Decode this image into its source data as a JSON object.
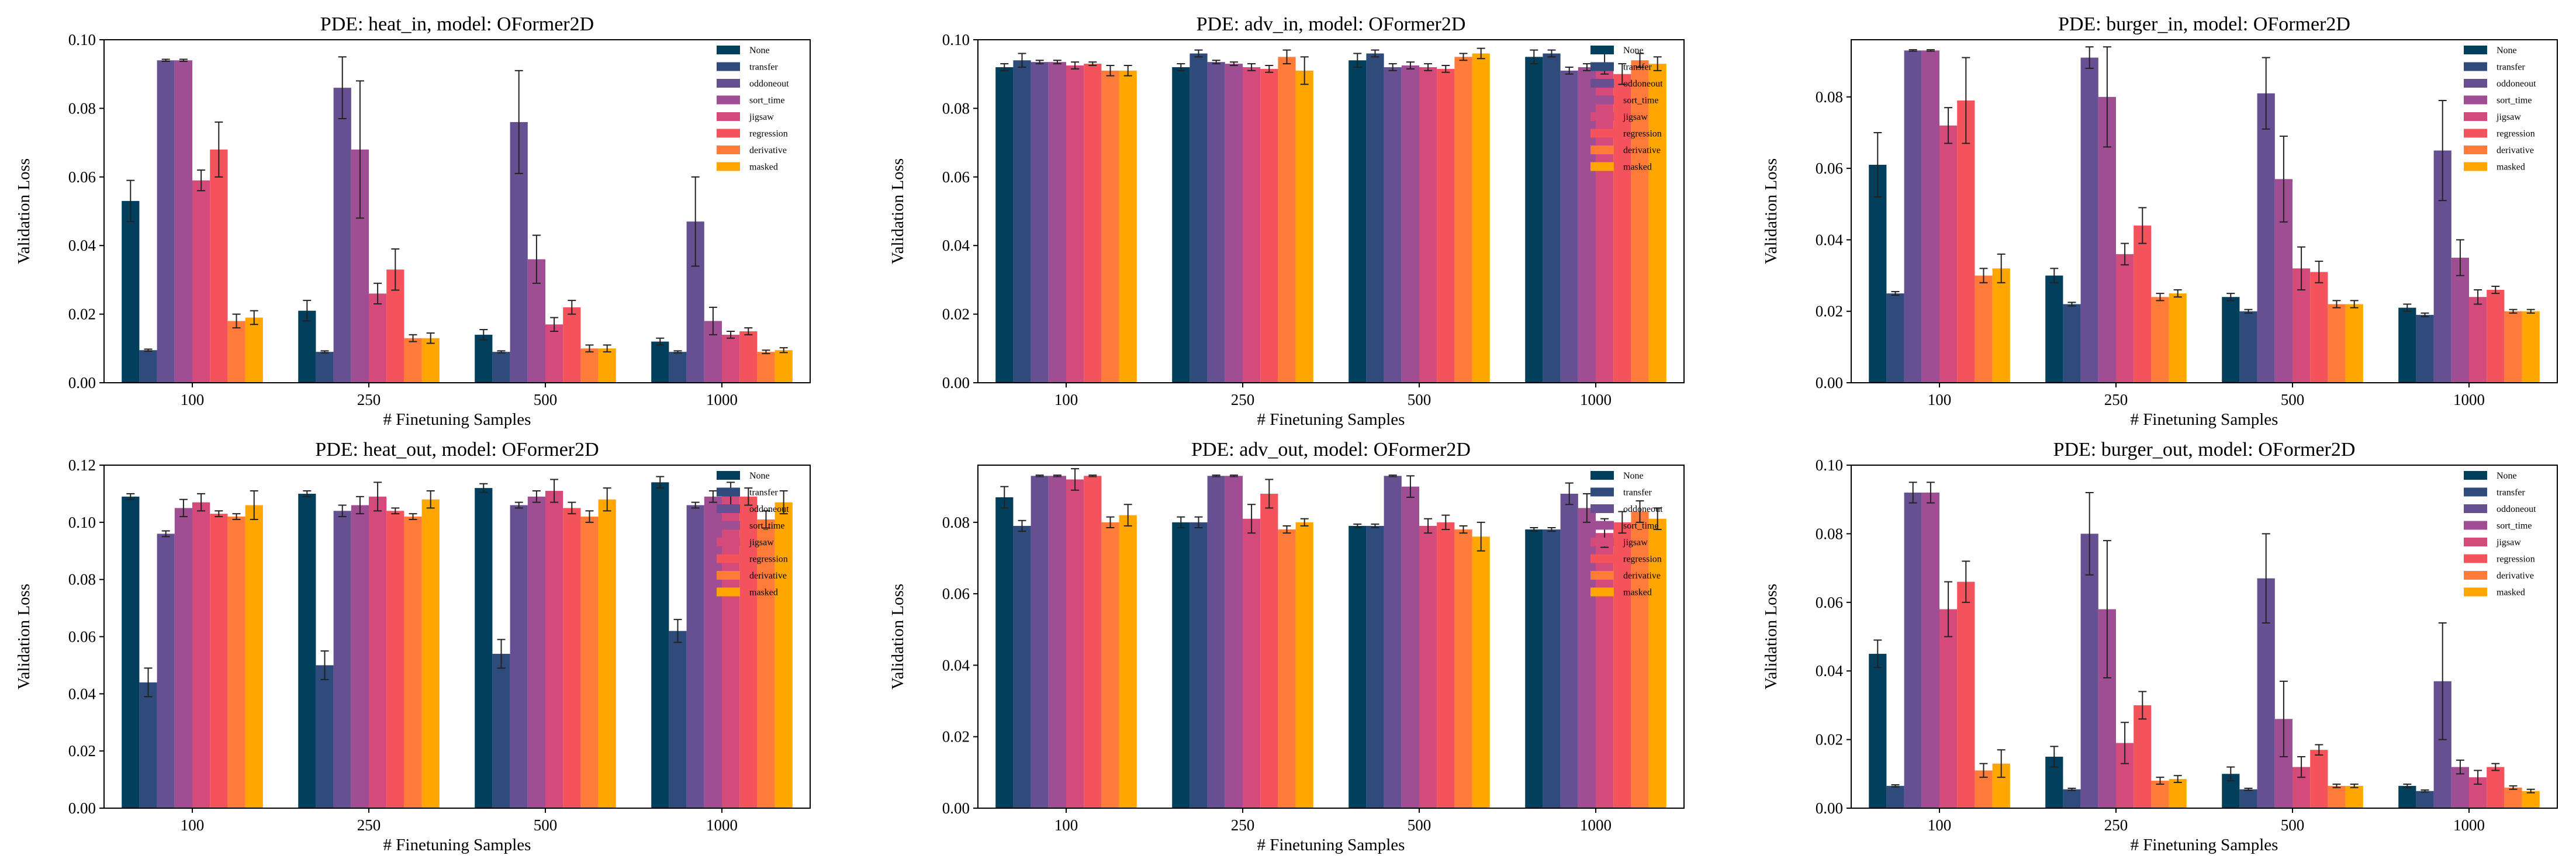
{
  "figure": {
    "colors": {
      "None": "#023f5c",
      "transfer": "#2e4b7b",
      "oddoneout": "#665091",
      "sort_time": "#a04e93",
      "jigsaw": "#d44a7a",
      "regression": "#f4535c",
      "derivative": "#ff7b39",
      "masked": "#ffa600",
      "errorbar": "#222222",
      "axis": "#000000"
    }
  },
  "chart_data": [
    {
      "type": "bar",
      "title": "PDE: heat_in, model: OFormer2D",
      "xlabel": "# Finetuning Samples",
      "ylabel": "Validation Loss",
      "categories": [
        "100",
        "250",
        "500",
        "1000"
      ],
      "ylim": [
        0,
        0.1
      ],
      "yticks": [
        "0.00",
        "0.02",
        "0.04",
        "0.06",
        "0.08",
        "0.10"
      ],
      "legend_position": "top-right",
      "series": [
        {
          "name": "None",
          "values": [
            0.053,
            0.021,
            0.014,
            0.012
          ],
          "errors": [
            0.006,
            0.003,
            0.0015,
            0.001
          ]
        },
        {
          "name": "transfer",
          "values": [
            0.0095,
            0.009,
            0.009,
            0.009
          ],
          "errors": [
            0.0003,
            0.0003,
            0.0003,
            0.0003
          ]
        },
        {
          "name": "oddoneout",
          "values": [
            0.094,
            0.086,
            0.076,
            0.047
          ],
          "errors": [
            0.0003,
            0.009,
            0.015,
            0.013
          ]
        },
        {
          "name": "sort_time",
          "values": [
            0.094,
            0.068,
            0.036,
            0.018
          ],
          "errors": [
            0.0003,
            0.02,
            0.007,
            0.004
          ]
        },
        {
          "name": "jigsaw",
          "values": [
            0.059,
            0.026,
            0.017,
            0.014
          ],
          "errors": [
            0.003,
            0.003,
            0.002,
            0.001
          ]
        },
        {
          "name": "regression",
          "values": [
            0.068,
            0.033,
            0.022,
            0.015
          ],
          "errors": [
            0.008,
            0.006,
            0.002,
            0.001
          ]
        },
        {
          "name": "derivative",
          "values": [
            0.018,
            0.013,
            0.01,
            0.009
          ],
          "errors": [
            0.002,
            0.001,
            0.001,
            0.0005
          ]
        },
        {
          "name": "masked",
          "values": [
            0.019,
            0.013,
            0.01,
            0.0095
          ],
          "errors": [
            0.002,
            0.0015,
            0.001,
            0.0007
          ]
        }
      ]
    },
    {
      "type": "bar",
      "title": "PDE: adv_in, model: OFormer2D",
      "xlabel": "# Finetuning Samples",
      "ylabel": "Validation Loss",
      "categories": [
        "100",
        "250",
        "500",
        "1000"
      ],
      "ylim": [
        0,
        0.1
      ],
      "yticks": [
        "0.00",
        "0.02",
        "0.04",
        "0.06",
        "0.08",
        "0.10"
      ],
      "legend_position": "top-right",
      "series": [
        {
          "name": "None",
          "values": [
            0.092,
            0.092,
            0.094,
            0.095
          ],
          "errors": [
            0.001,
            0.001,
            0.002,
            0.002
          ]
        },
        {
          "name": "transfer",
          "values": [
            0.094,
            0.096,
            0.096,
            0.096
          ],
          "errors": [
            0.002,
            0.001,
            0.001,
            0.001
          ]
        },
        {
          "name": "oddoneout",
          "values": [
            0.0935,
            0.0935,
            0.092,
            0.091
          ],
          "errors": [
            0.0005,
            0.0005,
            0.001,
            0.001
          ]
        },
        {
          "name": "sort_time",
          "values": [
            0.0935,
            0.093,
            0.0925,
            0.092
          ],
          "errors": [
            0.0005,
            0.0005,
            0.001,
            0.001
          ]
        },
        {
          "name": "jigsaw",
          "values": [
            0.0925,
            0.092,
            0.092,
            0.093
          ],
          "errors": [
            0.001,
            0.001,
            0.001,
            0.003
          ]
        },
        {
          "name": "regression",
          "values": [
            0.093,
            0.0915,
            0.0915,
            0.09
          ],
          "errors": [
            0.0005,
            0.001,
            0.001,
            0.003
          ]
        },
        {
          "name": "derivative",
          "values": [
            0.091,
            0.095,
            0.095,
            0.094
          ],
          "errors": [
            0.0015,
            0.002,
            0.001,
            0.002
          ]
        },
        {
          "name": "masked",
          "values": [
            0.091,
            0.091,
            0.096,
            0.093
          ],
          "errors": [
            0.0015,
            0.004,
            0.0015,
            0.002
          ]
        }
      ]
    },
    {
      "type": "bar",
      "title": "PDE: burger_in, model: OFormer2D",
      "xlabel": "# Finetuning Samples",
      "ylabel": "Validation Loss",
      "categories": [
        "100",
        "250",
        "500",
        "1000"
      ],
      "ylim": [
        0,
        0.096
      ],
      "yticks": [
        "0.00",
        "0.02",
        "0.04",
        "0.06",
        "0.08"
      ],
      "legend_position": "top-right",
      "series": [
        {
          "name": "None",
          "values": [
            0.061,
            0.03,
            0.024,
            0.021
          ],
          "errors": [
            0.009,
            0.002,
            0.001,
            0.001
          ]
        },
        {
          "name": "transfer",
          "values": [
            0.025,
            0.022,
            0.02,
            0.019
          ],
          "errors": [
            0.0005,
            0.0005,
            0.0005,
            0.0005
          ]
        },
        {
          "name": "oddoneout",
          "values": [
            0.093,
            0.091,
            0.081,
            0.065
          ],
          "errors": [
            0.0002,
            0.003,
            0.01,
            0.014
          ]
        },
        {
          "name": "sort_time",
          "values": [
            0.093,
            0.08,
            0.057,
            0.035
          ],
          "errors": [
            0.0002,
            0.014,
            0.012,
            0.005
          ]
        },
        {
          "name": "jigsaw",
          "values": [
            0.072,
            0.036,
            0.032,
            0.024
          ],
          "errors": [
            0.005,
            0.003,
            0.006,
            0.002
          ]
        },
        {
          "name": "regression",
          "values": [
            0.079,
            0.044,
            0.031,
            0.026
          ],
          "errors": [
            0.012,
            0.005,
            0.003,
            0.001
          ]
        },
        {
          "name": "derivative",
          "values": [
            0.03,
            0.024,
            0.022,
            0.02
          ],
          "errors": [
            0.002,
            0.001,
            0.001,
            0.0005
          ]
        },
        {
          "name": "masked",
          "values": [
            0.032,
            0.025,
            0.022,
            0.02
          ],
          "errors": [
            0.004,
            0.001,
            0.001,
            0.0005
          ]
        }
      ]
    },
    {
      "type": "bar",
      "title": "PDE: heat_out, model: OFormer2D",
      "xlabel": "# Finetuning Samples",
      "ylabel": "Validation Loss",
      "categories": [
        "100",
        "250",
        "500",
        "1000"
      ],
      "ylim": [
        0,
        0.12
      ],
      "yticks": [
        "0.00",
        "0.02",
        "0.04",
        "0.06",
        "0.08",
        "0.10",
        "0.12"
      ],
      "legend_position": "top-right",
      "series": [
        {
          "name": "None",
          "values": [
            0.109,
            0.11,
            0.112,
            0.114
          ],
          "errors": [
            0.001,
            0.001,
            0.0015,
            0.002
          ]
        },
        {
          "name": "transfer",
          "values": [
            0.044,
            0.05,
            0.054,
            0.062
          ],
          "errors": [
            0.005,
            0.005,
            0.005,
            0.004
          ]
        },
        {
          "name": "oddoneout",
          "values": [
            0.096,
            0.104,
            0.106,
            0.106
          ],
          "errors": [
            0.001,
            0.002,
            0.001,
            0.001
          ]
        },
        {
          "name": "sort_time",
          "values": [
            0.105,
            0.106,
            0.109,
            0.109
          ],
          "errors": [
            0.003,
            0.003,
            0.002,
            0.002
          ]
        },
        {
          "name": "jigsaw",
          "values": [
            0.107,
            0.109,
            0.111,
            0.11
          ],
          "errors": [
            0.003,
            0.005,
            0.004,
            0.004
          ]
        },
        {
          "name": "regression",
          "values": [
            0.103,
            0.104,
            0.105,
            0.109
          ],
          "errors": [
            0.001,
            0.001,
            0.002,
            0.003
          ]
        },
        {
          "name": "derivative",
          "values": [
            0.102,
            0.102,
            0.102,
            0.101
          ],
          "errors": [
            0.001,
            0.001,
            0.002,
            0.003
          ]
        },
        {
          "name": "masked",
          "values": [
            0.106,
            0.108,
            0.108,
            0.107
          ],
          "errors": [
            0.005,
            0.003,
            0.004,
            0.004
          ]
        }
      ]
    },
    {
      "type": "bar",
      "title": "PDE: adv_out, model: OFormer2D",
      "xlabel": "# Finetuning Samples",
      "ylabel": "Validation Loss",
      "categories": [
        "100",
        "250",
        "500",
        "1000"
      ],
      "ylim": [
        0,
        0.096
      ],
      "yticks": [
        "0.00",
        "0.02",
        "0.04",
        "0.06",
        "0.08"
      ],
      "legend_position": "top-right",
      "series": [
        {
          "name": "None",
          "values": [
            0.087,
            0.08,
            0.079,
            0.078
          ],
          "errors": [
            0.003,
            0.0015,
            0.0005,
            0.0005
          ]
        },
        {
          "name": "transfer",
          "values": [
            0.079,
            0.08,
            0.079,
            0.078
          ],
          "errors": [
            0.0015,
            0.0015,
            0.0005,
            0.0005
          ]
        },
        {
          "name": "oddoneout",
          "values": [
            0.093,
            0.093,
            0.093,
            0.088
          ],
          "errors": [
            0.0002,
            0.0002,
            0.0002,
            0.003
          ]
        },
        {
          "name": "sort_time",
          "values": [
            0.093,
            0.093,
            0.09,
            0.084
          ],
          "errors": [
            0.0002,
            0.0002,
            0.003,
            0.004
          ]
        },
        {
          "name": "jigsaw",
          "values": [
            0.092,
            0.081,
            0.079,
            0.077
          ],
          "errors": [
            0.003,
            0.004,
            0.002,
            0.004
          ]
        },
        {
          "name": "regression",
          "values": [
            0.093,
            0.088,
            0.08,
            0.08
          ],
          "errors": [
            0.0002,
            0.004,
            0.002,
            0.003
          ]
        },
        {
          "name": "derivative",
          "values": [
            0.08,
            0.078,
            0.078,
            0.083
          ],
          "errors": [
            0.0015,
            0.001,
            0.001,
            0.003
          ]
        },
        {
          "name": "masked",
          "values": [
            0.082,
            0.08,
            0.076,
            0.081
          ],
          "errors": [
            0.003,
            0.001,
            0.004,
            0.003
          ]
        }
      ]
    },
    {
      "type": "bar",
      "title": "PDE: burger_out, model: OFormer2D",
      "xlabel": "# Finetuning Samples",
      "ylabel": "Validation Loss",
      "categories": [
        "100",
        "250",
        "500",
        "1000"
      ],
      "ylim": [
        0,
        0.1
      ],
      "yticks": [
        "0.00",
        "0.02",
        "0.04",
        "0.06",
        "0.08",
        "0.10"
      ],
      "legend_position": "top-right",
      "series": [
        {
          "name": "None",
          "values": [
            0.045,
            0.015,
            0.01,
            0.0065
          ],
          "errors": [
            0.004,
            0.003,
            0.002,
            0.0005
          ]
        },
        {
          "name": "transfer",
          "values": [
            0.0065,
            0.0055,
            0.0055,
            0.005
          ],
          "errors": [
            0.0003,
            0.0003,
            0.0003,
            0.0003
          ]
        },
        {
          "name": "oddoneout",
          "values": [
            0.092,
            0.08,
            0.067,
            0.037
          ],
          "errors": [
            0.003,
            0.012,
            0.013,
            0.017
          ]
        },
        {
          "name": "sort_time",
          "values": [
            0.092,
            0.058,
            0.026,
            0.012
          ],
          "errors": [
            0.003,
            0.02,
            0.011,
            0.002
          ]
        },
        {
          "name": "jigsaw",
          "values": [
            0.058,
            0.019,
            0.012,
            0.009
          ],
          "errors": [
            0.008,
            0.006,
            0.003,
            0.002
          ]
        },
        {
          "name": "regression",
          "values": [
            0.066,
            0.03,
            0.017,
            0.012
          ],
          "errors": [
            0.006,
            0.004,
            0.0015,
            0.001
          ]
        },
        {
          "name": "derivative",
          "values": [
            0.011,
            0.008,
            0.0065,
            0.006
          ],
          "errors": [
            0.002,
            0.001,
            0.0005,
            0.0005
          ]
        },
        {
          "name": "masked",
          "values": [
            0.013,
            0.0085,
            0.0065,
            0.005
          ],
          "errors": [
            0.004,
            0.001,
            0.0005,
            0.0005
          ]
        }
      ]
    }
  ]
}
